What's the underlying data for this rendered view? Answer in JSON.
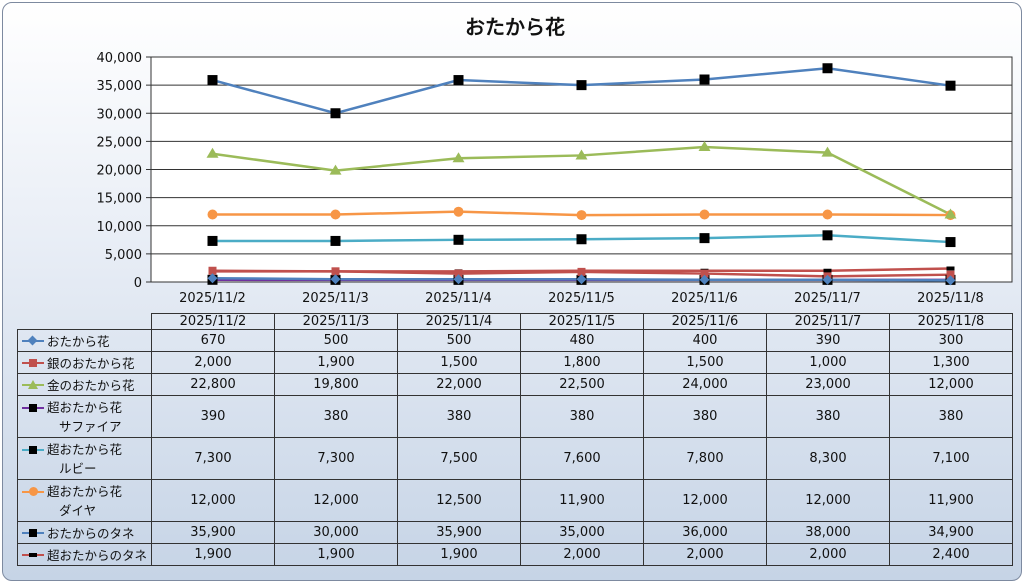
{
  "chart_data": {
    "type": "line",
    "title": "おたから花",
    "ylim": [
      0,
      40000
    ],
    "yticks": [
      "0",
      "5,000",
      "10,000",
      "15,000",
      "20,000",
      "25,000",
      "30,000",
      "35,000",
      "40,000"
    ],
    "categories": [
      "2025/11/2",
      "2025/11/3",
      "2025/11/4",
      "2025/11/5",
      "2025/11/6",
      "2025/11/7",
      "2025/11/8"
    ],
    "grid": true,
    "legend": "data-table",
    "series": [
      {
        "name": "おたから花",
        "color": "#4f81bd",
        "marker": "diamond",
        "values": [
          670,
          500,
          500,
          480,
          400,
          390,
          300
        ],
        "labels": [
          "670",
          "500",
          "500",
          "480",
          "400",
          "390",
          "300"
        ]
      },
      {
        "name": "銀のおたから花",
        "color": "#c0504d",
        "marker": "square",
        "values": [
          2000,
          1900,
          1500,
          1800,
          1500,
          1000,
          1300
        ],
        "labels": [
          "2,000",
          "1,900",
          "1,500",
          "1,800",
          "1,500",
          "1,000",
          "1,300"
        ]
      },
      {
        "name": "金のおたから花",
        "color": "#9bbb59",
        "marker": "triangle",
        "values": [
          22800,
          19800,
          22000,
          22500,
          24000,
          23000,
          12000
        ],
        "labels": [
          "22,800",
          "19,800",
          "22,000",
          "22,500",
          "24,000",
          "23,000",
          "12,000"
        ]
      },
      {
        "name": "超おたから花サファイア",
        "name_lines": [
          "超おたから花",
          "サファイア"
        ],
        "color": "#7030a0",
        "marker": "square-black",
        "values": [
          390,
          380,
          380,
          380,
          380,
          380,
          380
        ],
        "labels": [
          "390",
          "380",
          "380",
          "380",
          "380",
          "380",
          "380"
        ]
      },
      {
        "name": "超おたから花ルビー",
        "name_lines": [
          "超おたから花",
          "ルビー"
        ],
        "color": "#4bacc6",
        "marker": "square-black",
        "values": [
          7300,
          7300,
          7500,
          7600,
          7800,
          8300,
          7100
        ],
        "labels": [
          "7,300",
          "7,300",
          "7,500",
          "7,600",
          "7,800",
          "8,300",
          "7,100"
        ]
      },
      {
        "name": "超おたから花ダイヤ",
        "name_lines": [
          "超おたから花",
          "ダイヤ"
        ],
        "color": "#f79646",
        "marker": "circle",
        "values": [
          12000,
          12000,
          12500,
          11900,
          12000,
          12000,
          11900
        ],
        "labels": [
          "12,000",
          "12,000",
          "12,500",
          "11,900",
          "12,000",
          "12,000",
          "11,900"
        ]
      },
      {
        "name": "おたからのタネ",
        "color": "#4f81bd",
        "marker": "square-black",
        "values": [
          35900,
          30000,
          35900,
          35000,
          36000,
          38000,
          34900
        ],
        "labels": [
          "35,900",
          "30,000",
          "35,900",
          "35,000",
          "36,000",
          "38,000",
          "34,900"
        ]
      },
      {
        "name": "超おたからのタネ",
        "color": "#c0504d",
        "marker": "dash-black",
        "values": [
          1900,
          1900,
          1900,
          2000,
          2000,
          2000,
          2400
        ],
        "labels": [
          "1,900",
          "1,900",
          "1,900",
          "2,000",
          "2,000",
          "2,000",
          "2,400"
        ]
      }
    ]
  }
}
